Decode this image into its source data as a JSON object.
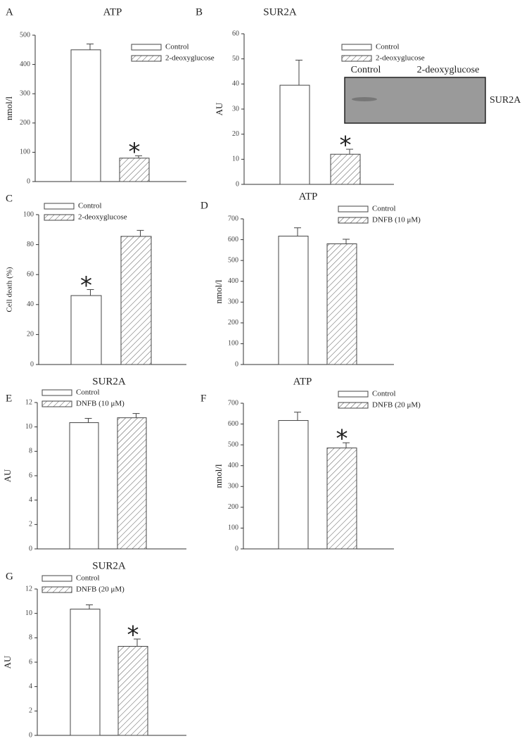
{
  "chart_data": [
    {
      "type": "bar",
      "panel": "A",
      "title": "ATP",
      "ylabel": "nmol/l",
      "ylim": [
        0,
        500
      ],
      "yticks": [
        0,
        100,
        200,
        300,
        400,
        500
      ],
      "series": [
        {
          "name": "Control",
          "values": [
            450
          ],
          "errors": [
            20
          ]
        },
        {
          "name": "2-deoxyglucose",
          "values": [
            80
          ],
          "errors": [
            8
          ],
          "annotation": "*"
        }
      ]
    },
    {
      "type": "bar",
      "panel": "B",
      "title": "SUR2A",
      "ylabel": "AU",
      "ylim": [
        0,
        60
      ],
      "yticks": [
        0,
        10,
        20,
        30,
        40,
        50,
        60
      ],
      "series": [
        {
          "name": "Control",
          "values": [
            39.5
          ],
          "errors": [
            10
          ]
        },
        {
          "name": "2-deoxyglucose",
          "values": [
            12
          ],
          "errors": [
            2
          ],
          "annotation": "*"
        }
      ],
      "inset": {
        "lanes": [
          "Control",
          "2-deoxyglucose"
        ],
        "label": "SUR2A"
      }
    },
    {
      "type": "bar",
      "panel": "C",
      "ylabel": "Cell death (%)",
      "ylim": [
        0,
        100
      ],
      "yticks": [
        0,
        20,
        40,
        60,
        80,
        100
      ],
      "series": [
        {
          "name": "Control",
          "values": [
            46
          ],
          "errors": [
            4
          ],
          "annotation": "*"
        },
        {
          "name": "2-deoxyglucose",
          "values": [
            85.5
          ],
          "errors": [
            4
          ]
        }
      ]
    },
    {
      "type": "bar",
      "panel": "D",
      "title": "ATP",
      "ylabel": "nmol/l",
      "ylim": [
        0,
        700
      ],
      "yticks": [
        0,
        100,
        200,
        300,
        400,
        500,
        600,
        700
      ],
      "series": [
        {
          "name": "Control",
          "values": [
            617
          ],
          "errors": [
            40
          ]
        },
        {
          "name": "DNFB (10 μM)",
          "values": [
            580
          ],
          "errors": [
            22
          ]
        }
      ]
    },
    {
      "type": "bar",
      "panel": "E",
      "title": "SUR2A",
      "ylabel": "AU",
      "ylim": [
        0,
        12
      ],
      "yticks": [
        0,
        2,
        4,
        6,
        8,
        10,
        12
      ],
      "series": [
        {
          "name": "Control",
          "values": [
            10.35
          ],
          "errors": [
            0.35
          ]
        },
        {
          "name": "DNFB (10 μM)",
          "values": [
            10.75
          ],
          "errors": [
            0.35
          ]
        }
      ]
    },
    {
      "type": "bar",
      "panel": "F",
      "title": "ATP",
      "ylabel": "nmol/l",
      "ylim": [
        0,
        700
      ],
      "yticks": [
        0,
        100,
        200,
        300,
        400,
        500,
        600,
        700
      ],
      "series": [
        {
          "name": "Control",
          "values": [
            617
          ],
          "errors": [
            40
          ]
        },
        {
          "name": "DNFB (20 μM)",
          "values": [
            485
          ],
          "errors": [
            25
          ],
          "annotation": "*"
        }
      ]
    },
    {
      "type": "bar",
      "panel": "G",
      "title": "SUR2A",
      "ylabel": "AU",
      "ylim": [
        0,
        12
      ],
      "yticks": [
        0,
        2,
        4,
        6,
        8,
        10,
        12
      ],
      "series": [
        {
          "name": "Control",
          "values": [
            10.35
          ],
          "errors": [
            0.35
          ]
        },
        {
          "name": "DNFB (20 μM)",
          "values": [
            7.3
          ],
          "errors": [
            0.6
          ],
          "annotation": "*"
        }
      ]
    }
  ]
}
